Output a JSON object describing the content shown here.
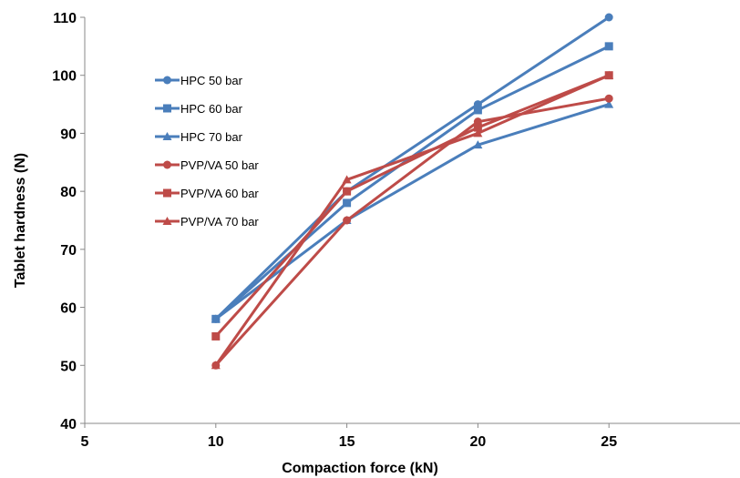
{
  "chart_data": {
    "type": "line",
    "xlabel": "Compaction force (kN)",
    "ylabel": "Tablet hardness (N)",
    "xlim": [
      5,
      30
    ],
    "ylim": [
      40,
      110
    ],
    "xticks": [
      5,
      10,
      15,
      20,
      25
    ],
    "yticks": [
      40,
      50,
      60,
      70,
      80,
      90,
      100,
      110
    ],
    "grid": false,
    "legend": "upper-left inside plot",
    "x": [
      10,
      15,
      20,
      25
    ],
    "series": [
      {
        "name": "HPC 50 bar",
        "marker": "circle",
        "color": "#4a7ebb",
        "values": [
          58,
          80,
          95,
          110
        ]
      },
      {
        "name": "HPC 60 bar",
        "marker": "square",
        "color": "#4a7ebb",
        "values": [
          58,
          78,
          94,
          105
        ]
      },
      {
        "name": "HPC 70 bar",
        "marker": "triangle",
        "color": "#4a7ebb",
        "values": [
          58,
          75,
          88,
          95
        ]
      },
      {
        "name": "PVP/VA 50 bar",
        "marker": "circle",
        "color": "#be4b48",
        "values": [
          50,
          75,
          92,
          96
        ]
      },
      {
        "name": "PVP/VA 60 bar",
        "marker": "square",
        "color": "#be4b48",
        "values": [
          55,
          80,
          91,
          100
        ]
      },
      {
        "name": "PVP/VA 70 bar",
        "marker": "triangle",
        "color": "#be4b48",
        "values": [
          50,
          82,
          90,
          100
        ]
      }
    ]
  }
}
